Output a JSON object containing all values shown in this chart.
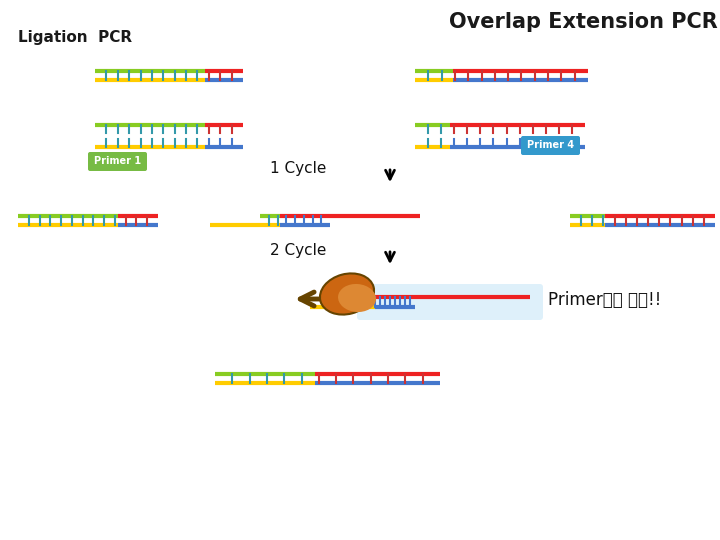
{
  "title": "Overlap Extension PCR",
  "subtitle": "Ligation  PCR",
  "bg_color": "#ffffff",
  "title_color": "#1a1a1a",
  "primer1_label": "Primer 1",
  "primer4_label": "Primer 4",
  "primer1_bg": "#77bb44",
  "primer4_bg": "#3399cc",
  "cycle1_label": "1 Cycle",
  "cycle2_label": "2 Cycle",
  "primer_func_label": "Primer로써 기능!!",
  "green": "#88cc22",
  "yellow": "#ffcc00",
  "red": "#ee2222",
  "blue": "#4477cc",
  "tick_green": "#3399aa",
  "tick_red": "#cc3333",
  "tick_blue": "#4477cc",
  "orange_dark": "#cc6611",
  "orange_light": "#dd8833",
  "arrow_color": "#664400"
}
